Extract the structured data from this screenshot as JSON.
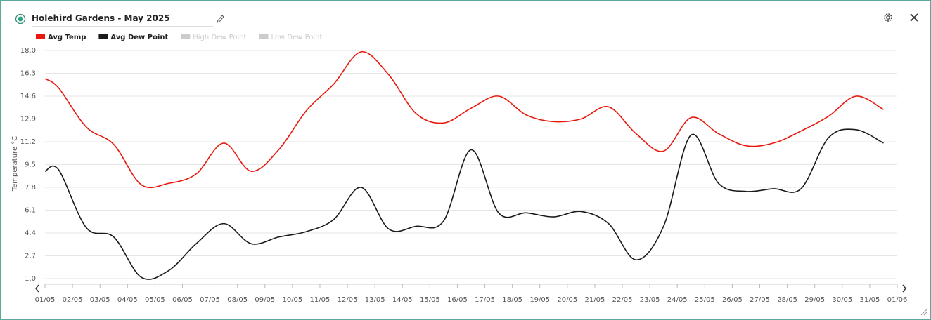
{
  "header": {
    "title": "Holehird Gardens - May 2025"
  },
  "chart_data": {
    "type": "line",
    "y_label": "Temperature °C",
    "x": [
      0,
      0.5,
      1.5,
      2.5,
      3.5,
      4.5,
      5.5,
      6.5,
      7.5,
      8.5,
      9.5,
      10.5,
      11.5,
      12.5,
      13.5,
      14.5,
      15.5,
      16.5,
      17.5,
      18.5,
      19.5,
      20.5,
      21.5,
      22.5,
      23.5,
      24.5,
      25.5,
      26.5,
      27.5,
      28.5,
      29.5,
      30.5
    ],
    "series": [
      {
        "name": "Avg Temp",
        "color": "#e8190c",
        "values": [
          15.9,
          15.2,
          12.3,
          11.0,
          8.0,
          8.1,
          8.8,
          11.1,
          9.0,
          10.6,
          13.5,
          15.5,
          17.9,
          16.2,
          13.3,
          12.6,
          13.7,
          14.6,
          13.2,
          12.7,
          12.9,
          13.8,
          11.8,
          10.5,
          13.0,
          11.8,
          10.9,
          11.1,
          12.0,
          13.1,
          14.6,
          13.6
        ]
      },
      {
        "name": "Avg Dew Point",
        "color": "#1a1a1a",
        "values": [
          9.0,
          9.1,
          4.8,
          4.1,
          1.1,
          1.6,
          3.6,
          5.1,
          3.6,
          4.1,
          4.5,
          5.4,
          7.8,
          4.7,
          4.9,
          5.3,
          10.6,
          5.9,
          5.9,
          5.6,
          6.0,
          5.1,
          2.4,
          4.9,
          11.7,
          8.1,
          7.5,
          7.7,
          7.7,
          11.5,
          12.1,
          11.1
        ]
      }
    ],
    "hidden_series": [
      "High Dew Point",
      "Low Dew Point"
    ],
    "hidden_color": "#cccccc",
    "xlim": [
      0,
      31
    ],
    "xticks": [
      {
        "value": 0,
        "label": "01/05"
      },
      {
        "value": 1,
        "label": "02/05"
      },
      {
        "value": 2,
        "label": "03/05"
      },
      {
        "value": 3,
        "label": "04/05"
      },
      {
        "value": 4,
        "label": "05/05"
      },
      {
        "value": 5,
        "label": "06/05"
      },
      {
        "value": 6,
        "label": "07/05"
      },
      {
        "value": 7,
        "label": "08/05"
      },
      {
        "value": 8,
        "label": "09/05"
      },
      {
        "value": 9,
        "label": "10/05"
      },
      {
        "value": 10,
        "label": "11/05"
      },
      {
        "value": 11,
        "label": "12/05"
      },
      {
        "value": 12,
        "label": "13/05"
      },
      {
        "value": 13,
        "label": "14/05"
      },
      {
        "value": 14,
        "label": "15/05"
      },
      {
        "value": 15,
        "label": "16/05"
      },
      {
        "value": 16,
        "label": "17/05"
      },
      {
        "value": 17,
        "label": "18/05"
      },
      {
        "value": 18,
        "label": "19/05"
      },
      {
        "value": 19,
        "label": "20/05"
      },
      {
        "value": 20,
        "label": "21/05"
      },
      {
        "value": 21,
        "label": "22/05"
      },
      {
        "value": 22,
        "label": "23/05"
      },
      {
        "value": 23,
        "label": "24/05"
      },
      {
        "value": 24,
        "label": "25/05"
      },
      {
        "value": 25,
        "label": "26/05"
      },
      {
        "value": 26,
        "label": "27/05"
      },
      {
        "value": 27,
        "label": "28/05"
      },
      {
        "value": 28,
        "label": "29/05"
      },
      {
        "value": 29,
        "label": "30/05"
      },
      {
        "value": 30,
        "label": "31/05"
      },
      {
        "value": 31,
        "label": "01/06"
      }
    ],
    "ylim": [
      1,
      18
    ],
    "yticks": [
      {
        "value": 1,
        "label": "1.0"
      },
      2.7,
      4.4,
      6.1,
      7.8,
      9.5,
      11.2,
      12.9,
      14.6,
      16.3,
      {
        "value": 18,
        "label": "18.0"
      }
    ],
    "grid": true
  }
}
